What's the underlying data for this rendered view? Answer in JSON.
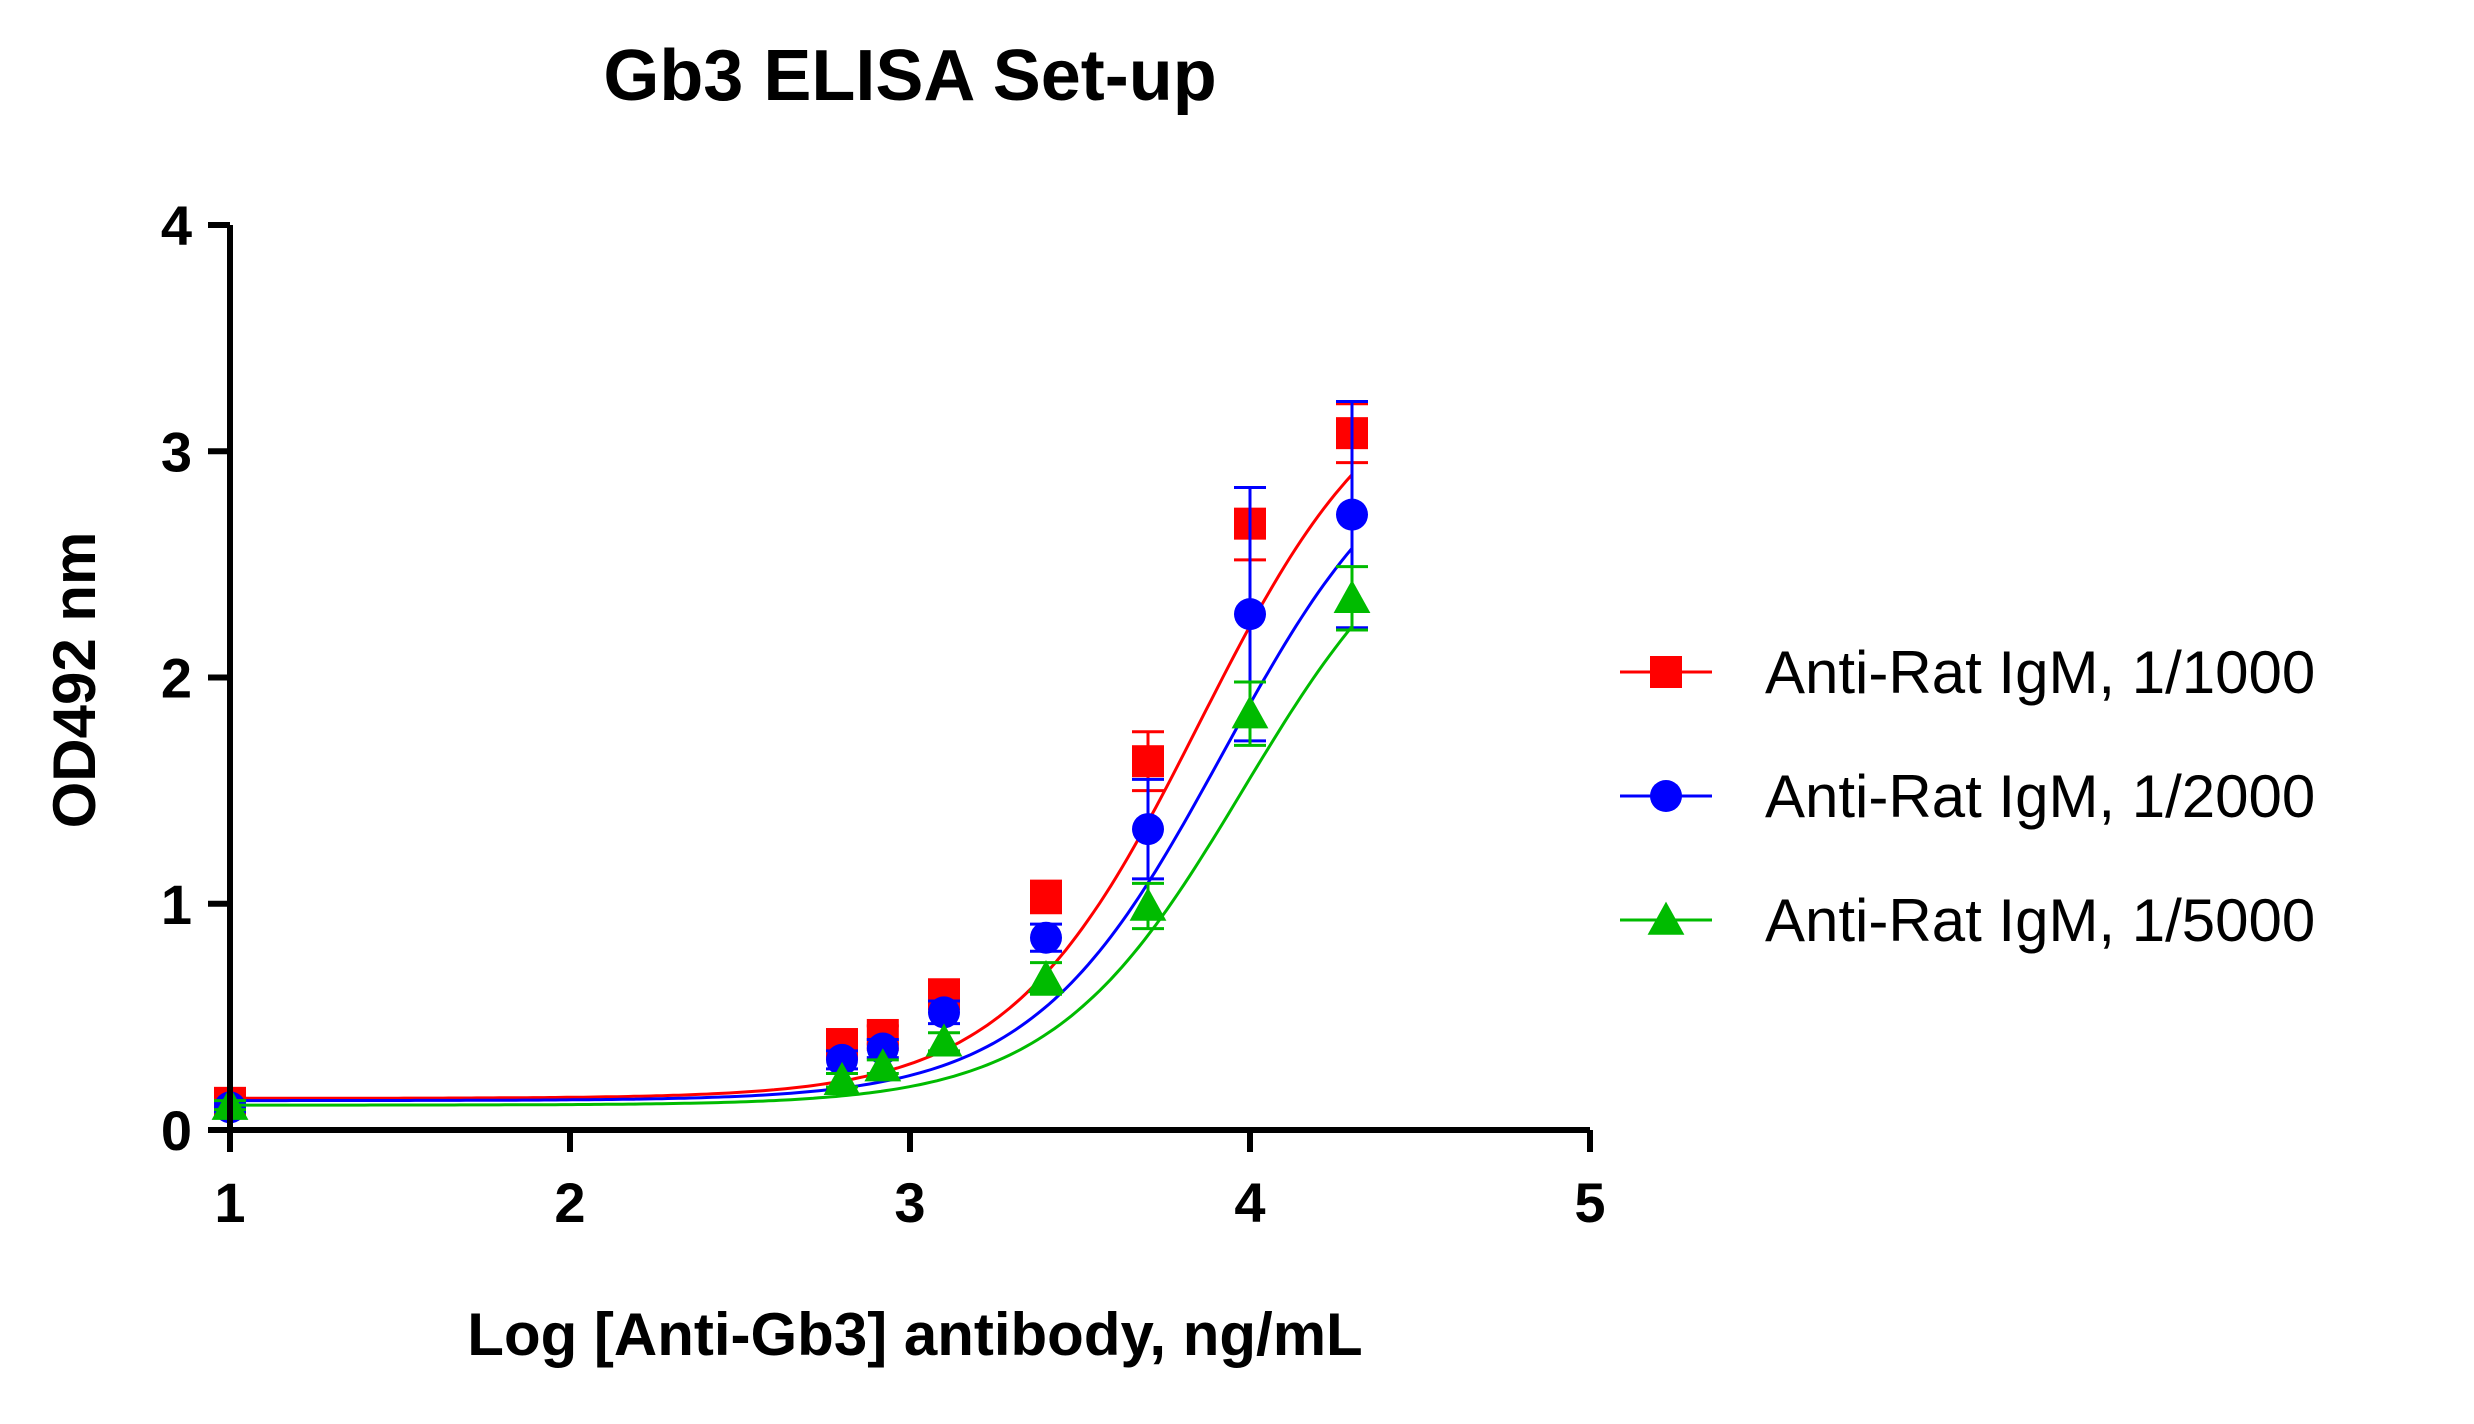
{
  "chart_data": {
    "type": "line",
    "title": "Gb3 ELISA Set-up",
    "xlabel": "Log [Anti-Gb3] antibody, ng/mL",
    "ylabel": "OD492 nm",
    "xlim": [
      1,
      5
    ],
    "ylim": [
      0,
      4
    ],
    "xticks": [
      "1",
      "2",
      "3",
      "4",
      "5"
    ],
    "yticks": [
      "0",
      "1",
      "2",
      "3",
      "4"
    ],
    "legend_position": "right",
    "series": [
      {
        "name": "Anti-Rat IgM, 1/1000",
        "color": "#ff0000",
        "marker": "square",
        "x": [
          1.0,
          2.8,
          2.92,
          3.1,
          3.4,
          3.7,
          4.0,
          4.3
        ],
        "y": [
          0.12,
          0.38,
          0.42,
          0.6,
          1.03,
          1.63,
          2.68,
          3.08
        ],
        "err": [
          0.02,
          0.04,
          0.04,
          0.05,
          0.07,
          0.13,
          0.16,
          0.13
        ],
        "fit": {
          "bottom": 0.14,
          "top": 3.45,
          "logEC50": 3.85,
          "hill": 1.55
        }
      },
      {
        "name": "Anti-Rat IgM, 1/2000",
        "color": "#0000ff",
        "marker": "circle",
        "x": [
          1.0,
          2.8,
          2.92,
          3.1,
          3.4,
          3.7,
          4.0,
          4.3
        ],
        "y": [
          0.1,
          0.31,
          0.36,
          0.52,
          0.85,
          1.33,
          2.28,
          2.72
        ],
        "err": [
          0.02,
          0.04,
          0.04,
          0.05,
          0.06,
          0.22,
          0.56,
          0.5
        ],
        "fit": {
          "bottom": 0.13,
          "top": 3.2,
          "logEC50": 3.92,
          "hill": 1.55
        }
      },
      {
        "name": "Anti-Rat IgM, 1/5000",
        "color": "#00bb00",
        "marker": "triangle",
        "x": [
          1.0,
          2.8,
          2.92,
          3.1,
          3.4,
          3.7,
          4.0,
          4.3
        ],
        "y": [
          0.11,
          0.22,
          0.28,
          0.39,
          0.67,
          0.99,
          1.84,
          2.35
        ],
        "err": [
          0.02,
          0.03,
          0.03,
          0.04,
          0.07,
          0.1,
          0.14,
          0.14
        ],
        "fit": {
          "bottom": 0.11,
          "top": 2.9,
          "logEC50": 3.98,
          "hill": 1.55
        }
      }
    ]
  }
}
